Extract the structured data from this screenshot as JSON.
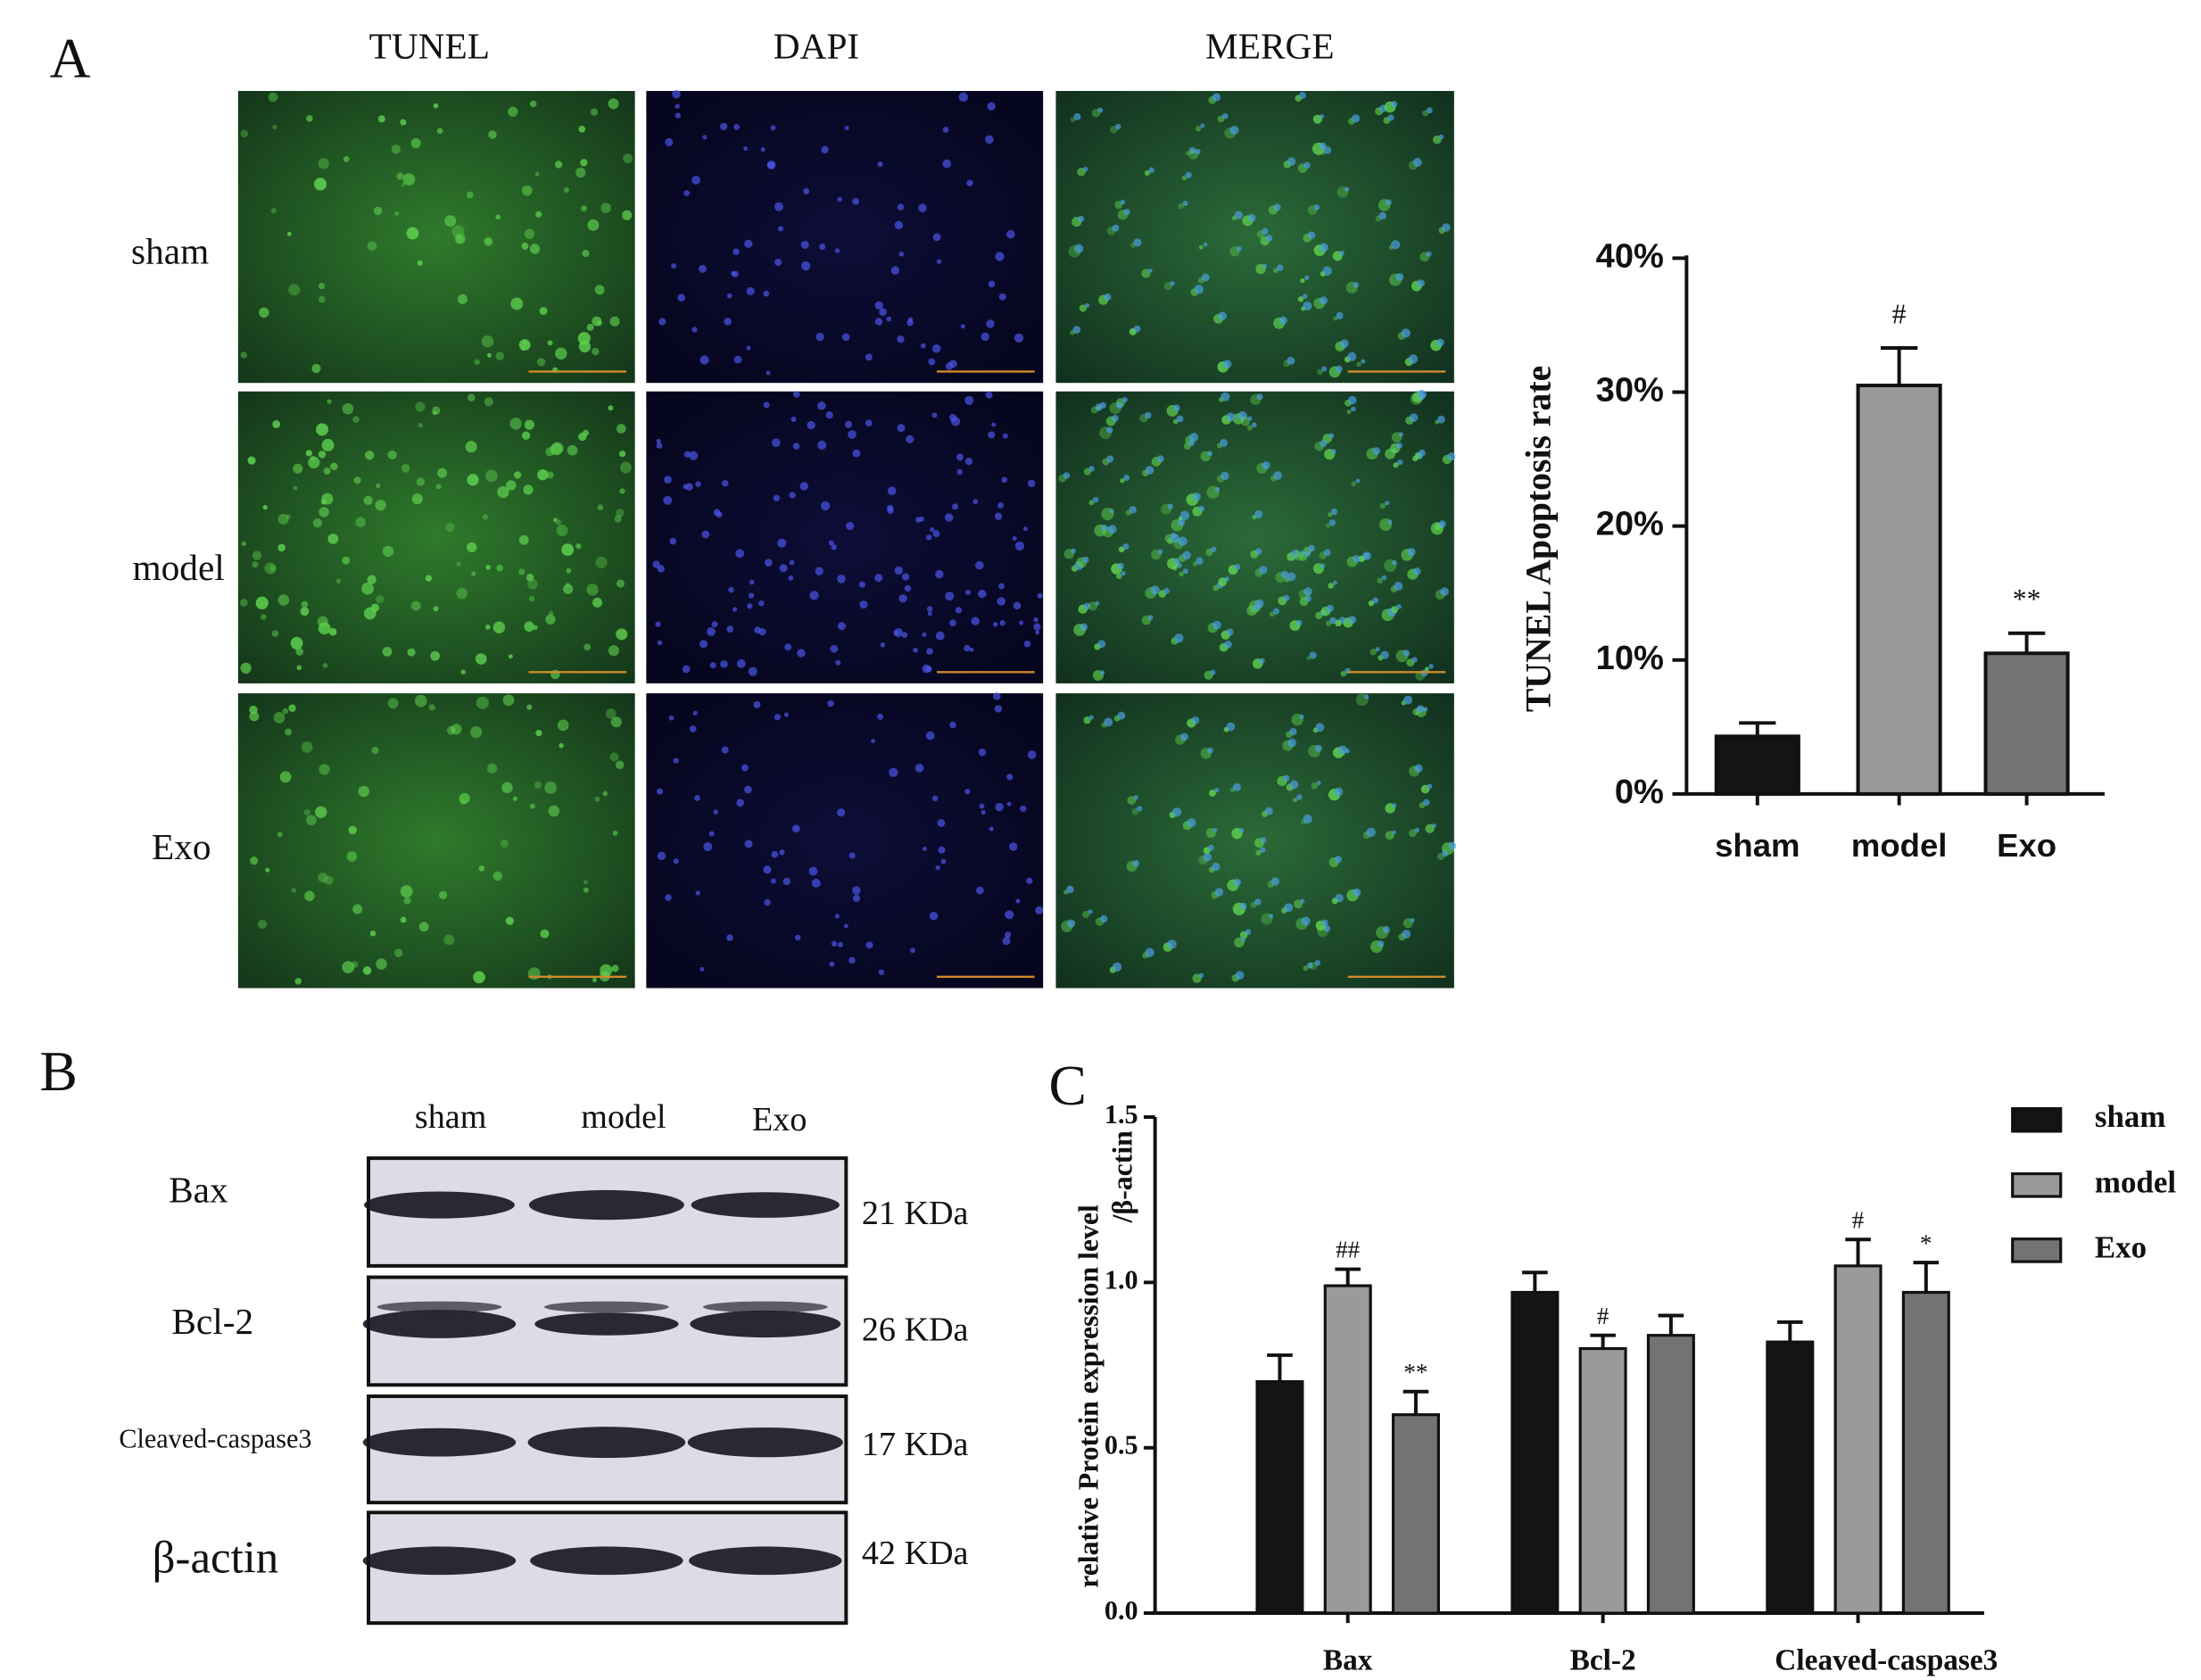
{
  "panels": {
    "A": "A",
    "B": "B",
    "C": "C"
  },
  "microscopy": {
    "columns": [
      "TUNEL",
      "DAPI",
      "MERGE"
    ],
    "rows": [
      "sham",
      "model",
      "Exo"
    ]
  },
  "western_blot": {
    "lanes": [
      "sham",
      "model",
      "Exo"
    ],
    "proteins": [
      {
        "name": "Bax",
        "size": "21 KDa"
      },
      {
        "name": "Bcl-2",
        "size": "26 KDa"
      },
      {
        "name": "Cleaved-caspase3",
        "size": "17 KDa"
      },
      {
        "name": "β-actin",
        "size": "42 KDa"
      }
    ]
  },
  "chart_data": [
    {
      "type": "bar",
      "ylabel": "TUNEL Apoptosis rate",
      "categories": [
        "sham",
        "model",
        "Exo"
      ],
      "values": [
        4.3,
        30.5,
        10.5
      ],
      "errors": [
        1.0,
        2.8,
        1.5
      ],
      "annotations": [
        null,
        "#",
        "**"
      ],
      "colors": [
        "#141414",
        "#9a9a9a",
        "#737373"
      ],
      "ylim": [
        0,
        40
      ],
      "yticks": [
        {
          "value": 0,
          "label": "0%"
        },
        {
          "value": 10,
          "label": "10%"
        },
        {
          "value": 20,
          "label": "20%"
        },
        {
          "value": 30,
          "label": "30%"
        },
        {
          "value": 40,
          "label": "40%"
        }
      ]
    },
    {
      "type": "grouped_bar",
      "ylabel": [
        "relative Protein expression level",
        "/β-actin"
      ],
      "categories": [
        "Bax",
        "Bcl-2",
        "Cleaved-caspase3"
      ],
      "series": [
        {
          "name": "sham",
          "color": "#141414",
          "values": [
            0.7,
            0.97,
            0.82
          ],
          "errors": [
            0.08,
            0.06,
            0.06
          ],
          "annotations": [
            null,
            null,
            null
          ]
        },
        {
          "name": "model",
          "color": "#9a9a9a",
          "values": [
            0.99,
            0.8,
            1.05
          ],
          "errors": [
            0.05,
            0.04,
            0.08
          ],
          "annotations": [
            "##",
            "#",
            "#"
          ]
        },
        {
          "name": "Exo",
          "color": "#737373",
          "values": [
            0.6,
            0.84,
            0.97
          ],
          "errors": [
            0.07,
            0.06,
            0.09
          ],
          "annotations": [
            "**",
            null,
            "*"
          ]
        }
      ],
      "ylim": [
        0,
        1.5
      ],
      "yticks": [
        {
          "value": 0,
          "label": "0.0"
        },
        0.5,
        {
          "value": 1,
          "label": "1.0"
        },
        1.5
      ],
      "legend": "right"
    }
  ]
}
